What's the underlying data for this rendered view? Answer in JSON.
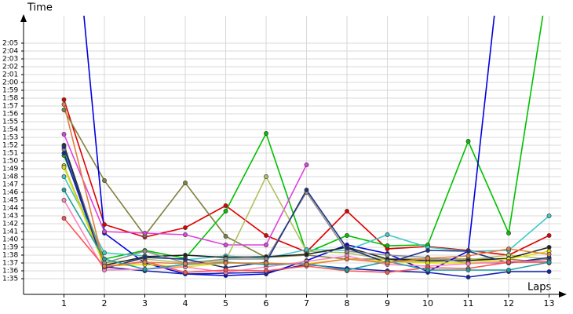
{
  "chart_data": {
    "type": "line",
    "y_label": "Time",
    "x_label": "Laps",
    "x": [
      1,
      2,
      3,
      4,
      5,
      6,
      7,
      8,
      9,
      10,
      11,
      12,
      13
    ],
    "xlim": [
      0,
      13.3
    ],
    "xticks": [
      1,
      2,
      3,
      4,
      5,
      6,
      7,
      8,
      9,
      10,
      11,
      12,
      13
    ],
    "ylim": [
      93,
      128.5
    ],
    "yticks": [
      {
        "value": 95,
        "label": "1:35"
      },
      {
        "value": 96,
        "label": "1:36"
      },
      {
        "value": 97,
        "label": "1:37"
      },
      {
        "value": 98,
        "label": "1:38"
      },
      {
        "value": 99,
        "label": "1:39"
      },
      {
        "value": 100,
        "label": "1:40"
      },
      {
        "value": 101,
        "label": "1:41"
      },
      {
        "value": 102,
        "label": "1:42"
      },
      {
        "value": 103,
        "label": "1:43"
      },
      {
        "value": 104,
        "label": "1:44"
      },
      {
        "value": 105,
        "label": "1:45"
      },
      {
        "value": 106,
        "label": "1:46"
      },
      {
        "value": 107,
        "label": "1:47"
      },
      {
        "value": 108,
        "label": "1:48"
      },
      {
        "value": 109,
        "label": "1:49"
      },
      {
        "value": 110,
        "label": "1:50"
      },
      {
        "value": 111,
        "label": "1:51"
      },
      {
        "value": 112,
        "label": "1:52"
      },
      {
        "value": 113,
        "label": "1:53"
      },
      {
        "value": 114,
        "label": "1:54"
      },
      {
        "value": 115,
        "label": "1:55"
      },
      {
        "value": 116,
        "label": "1:56"
      },
      {
        "value": 117,
        "label": "1:57"
      },
      {
        "value": 118,
        "label": "1:58"
      },
      {
        "value": 119,
        "label": "1:59"
      },
      {
        "value": 120,
        "label": "2:00"
      },
      {
        "value": 121,
        "label": "2:01"
      },
      {
        "value": 122,
        "label": "2:02"
      },
      {
        "value": 123,
        "label": "2:03"
      },
      {
        "value": 124,
        "label": "2:04"
      },
      {
        "value": 125,
        "label": "2:05"
      }
    ],
    "grid": true,
    "series": [
      {
        "color": "#e00000",
        "values": [
          117.8,
          101.9,
          100.3,
          101.5,
          104.3,
          100.5,
          98.4,
          103.6,
          98.8,
          99.1,
          98.6,
          98.0,
          100.5
        ]
      },
      {
        "color": "#808040",
        "values": [
          116.5,
          107.5,
          100.5,
          107.2,
          100.4,
          97.7,
          98.0,
          97.5,
          97.5,
          97.5,
          97.5,
          97.5,
          97.0
        ]
      },
      {
        "color": "#00c000",
        "values": [
          110.7,
          97.5,
          98.6,
          97.6,
          103.6,
          113.5,
          98.3,
          100.5,
          99.2,
          99.3,
          112.5,
          100.8,
          133.6
        ]
      },
      {
        "color": "#0000e0",
        "values": [
          155.5,
          100.8,
          97.0,
          95.6,
          95.4,
          95.6,
          97.3,
          99.3,
          98.2,
          95.9,
          98.5,
          145.0,
          null
        ]
      },
      {
        "color": "#1020b0",
        "values": [
          111.0,
          96.5,
          96.0,
          95.6,
          95.7,
          95.8,
          96.8,
          96.3,
          96.0,
          95.8,
          95.2,
          95.9,
          95.9
        ]
      },
      {
        "color": "#e040e0",
        "values": [
          113.4,
          101.0,
          100.8,
          100.6,
          99.3,
          99.3,
          109.5,
          null,
          null,
          null,
          null,
          null,
          null
        ]
      },
      {
        "color": "#b0c060",
        "values": [
          109.4,
          97.0,
          97.5,
          97.0,
          97.3,
          108.0,
          98.5,
          98.3,
          97.4,
          97.1,
          97.4,
          98.0,
          97.5
        ]
      },
      {
        "color": "#40c8c8",
        "values": [
          108.0,
          98.3,
          97.9,
          97.4,
          97.9,
          97.6,
          98.7,
          98.6,
          100.6,
          99.0,
          98.5,
          98.6,
          103.0
        ]
      },
      {
        "color": "#202020",
        "values": [
          112.0,
          96.7,
          97.8,
          98.0,
          97.7,
          97.8,
          98.1,
          99.0,
          97.5,
          97.3,
          97.3,
          97.6,
          99.0
        ]
      },
      {
        "color": "#909090",
        "values": [
          111.5,
          97.0,
          98.5,
          97.0,
          97.5,
          97.5,
          106.0,
          98.5,
          98.0,
          97.7,
          97.0,
          97.0,
          97.5
        ]
      },
      {
        "color": "#203080",
        "values": [
          111.8,
          96.3,
          97.7,
          97.5,
          96.4,
          97.1,
          106.3,
          98.9,
          97.0,
          98.6,
          98.5,
          97.0,
          97.7
        ]
      },
      {
        "color": "#e0e000",
        "values": [
          109.2,
          96.6,
          96.8,
          96.5,
          97.0,
          96.9,
          96.9,
          97.5,
          97.2,
          97.0,
          97.0,
          97.5,
          98.5
        ]
      },
      {
        "color": "#ff80c0",
        "values": [
          105.0,
          96.1,
          96.2,
          96.5,
          95.8,
          96.5,
          97.2,
          97.9,
          96.8,
          96.6,
          96.9,
          97.2,
          97.2
        ]
      },
      {
        "color": "#ff5050",
        "values": [
          102.7,
          96.5,
          97.2,
          95.8,
          96.1,
          96.0,
          96.6,
          96.0,
          95.8,
          96.4,
          96.3,
          97.1,
          97.1
        ]
      },
      {
        "color": "#20a0a0",
        "values": [
          106.3,
          97.5,
          96.2,
          96.8,
          97.1,
          96.8,
          96.9,
          96.1,
          97.2,
          96.1,
          96.1,
          96.1,
          97.1
        ]
      },
      {
        "color": "#e08040",
        "values": [
          117.2,
          96.6,
          97.1,
          96.9,
          97.0,
          97.0,
          96.8,
          97.5,
          97.0,
          97.6,
          97.9,
          98.8,
          98.1
        ]
      }
    ]
  }
}
